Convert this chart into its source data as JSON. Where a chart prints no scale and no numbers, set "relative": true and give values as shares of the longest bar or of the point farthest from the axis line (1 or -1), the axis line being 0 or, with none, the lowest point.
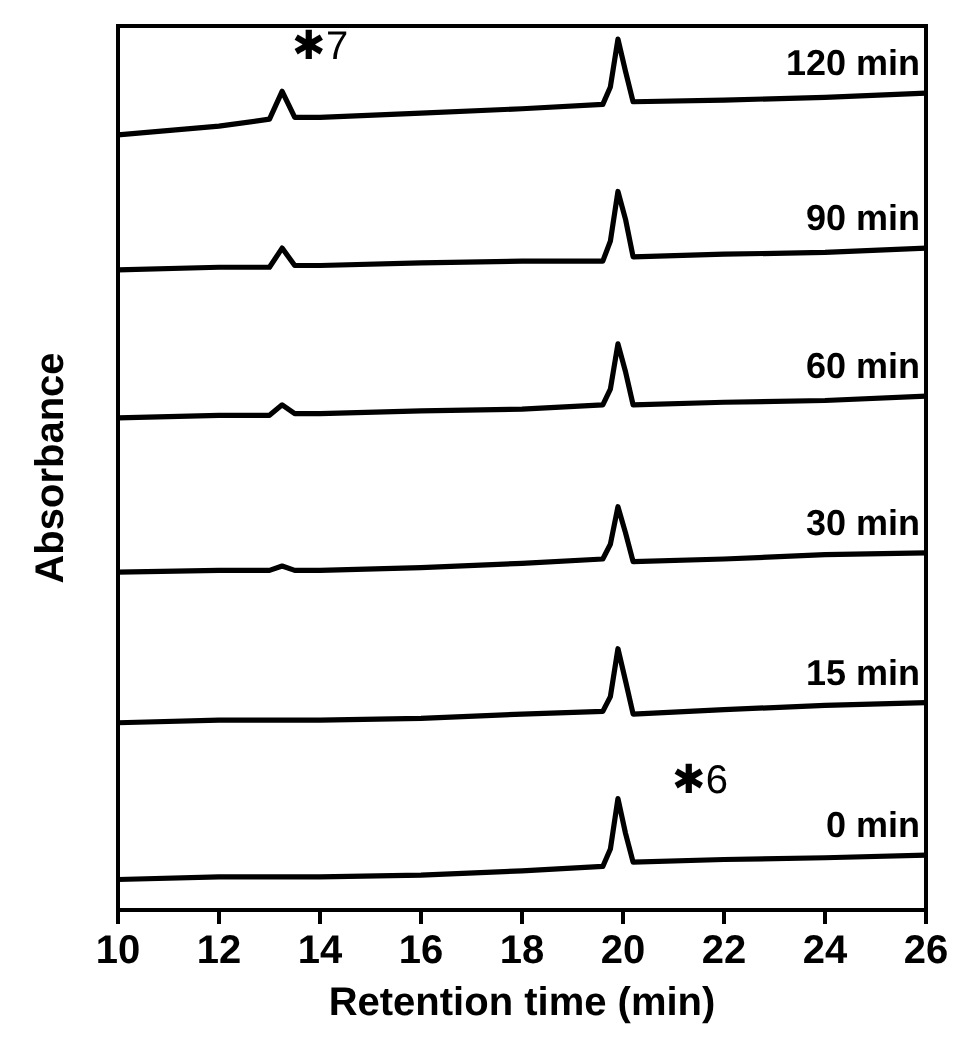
{
  "chart_data": {
    "type": "line",
    "relative": true,
    "xlabel": "Retention time (min)",
    "ylabel": "Absorbance",
    "xlim": [
      10,
      26
    ],
    "xticks": [
      10,
      12,
      14,
      16,
      18,
      20,
      22,
      24,
      26
    ],
    "tick_labels": "x",
    "grid": false,
    "legend": false,
    "line_style": "solid",
    "x": [
      10,
      12,
      13,
      13.25,
      13.5,
      14,
      16,
      18,
      19.6,
      19.75,
      19.9,
      20.05,
      20.2,
      22,
      24,
      26
    ],
    "series": [
      {
        "name": "0 min",
        "color": "#000000",
        "values": [
          0.035,
          0.038,
          0.038,
          0.038,
          0.038,
          0.038,
          0.04,
          0.045,
          0.05,
          0.07,
          0.128,
          0.088,
          0.055,
          0.058,
          0.06,
          0.063
        ]
      },
      {
        "name": "15 min",
        "color": "#000000",
        "values": [
          0.215,
          0.218,
          0.218,
          0.218,
          0.218,
          0.218,
          0.22,
          0.225,
          0.228,
          0.245,
          0.3,
          0.263,
          0.225,
          0.23,
          0.235,
          0.238
        ]
      },
      {
        "name": "30 min",
        "color": "#000000",
        "values": [
          0.388,
          0.39,
          0.39,
          0.395,
          0.39,
          0.39,
          0.393,
          0.398,
          0.403,
          0.42,
          0.463,
          0.433,
          0.4,
          0.403,
          0.408,
          0.41
        ]
      },
      {
        "name": "60 min",
        "color": "#000000",
        "values": [
          0.565,
          0.568,
          0.568,
          0.58,
          0.57,
          0.57,
          0.573,
          0.575,
          0.58,
          0.598,
          0.65,
          0.618,
          0.58,
          0.583,
          0.585,
          0.59
        ]
      },
      {
        "name": "90 min",
        "color": "#000000",
        "values": [
          0.735,
          0.738,
          0.738,
          0.76,
          0.74,
          0.74,
          0.743,
          0.745,
          0.745,
          0.768,
          0.825,
          0.793,
          0.75,
          0.753,
          0.755,
          0.76
        ]
      },
      {
        "name": "120 min",
        "color": "#000000",
        "values": [
          0.89,
          0.9,
          0.908,
          0.94,
          0.91,
          0.91,
          0.915,
          0.92,
          0.925,
          0.945,
          1,
          0.963,
          0.928,
          0.93,
          0.933,
          0.938
        ]
      }
    ],
    "annotations": [
      "✱7",
      "✱6"
    ]
  }
}
